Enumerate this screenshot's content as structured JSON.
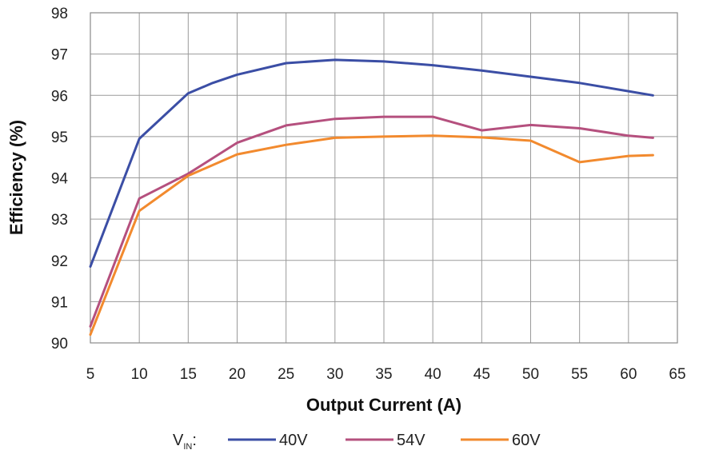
{
  "chart_data": {
    "type": "line",
    "xlabel": "Output Current (A)",
    "ylabel": "Efficiency (%)",
    "xlim": [
      5,
      65
    ],
    "ylim": [
      90,
      98
    ],
    "xticks": [
      5,
      10,
      15,
      20,
      25,
      30,
      35,
      40,
      45,
      50,
      55,
      60,
      65
    ],
    "yticks": [
      90,
      91,
      92,
      93,
      94,
      95,
      96,
      97,
      98
    ],
    "grid": true,
    "legend_position": "bottom",
    "legend_title": "V",
    "legend_title_sub": "IN",
    "legend_title_suffix": ":",
    "series": [
      {
        "name": "40V",
        "color": "#3b4ea5",
        "x": [
          5,
          10,
          15,
          17.5,
          20,
          25,
          30,
          35,
          40,
          45,
          50,
          55,
          60,
          62.5
        ],
        "y": [
          91.85,
          94.95,
          96.05,
          96.3,
          96.5,
          96.78,
          96.86,
          96.82,
          96.73,
          96.6,
          96.45,
          96.3,
          96.1,
          96.0
        ]
      },
      {
        "name": "54V",
        "color": "#b5507e",
        "x": [
          5,
          10,
          15,
          20,
          25,
          30,
          35,
          40,
          45,
          50,
          55,
          60,
          62.5
        ],
        "y": [
          90.4,
          93.5,
          94.1,
          94.85,
          95.27,
          95.43,
          95.48,
          95.48,
          95.15,
          95.28,
          95.2,
          95.02,
          94.97
        ]
      },
      {
        "name": "60V",
        "color": "#f28a2e",
        "x": [
          5,
          10,
          15,
          20,
          25,
          30,
          35,
          40,
          45,
          50,
          55,
          60,
          62.5
        ],
        "y": [
          90.2,
          93.2,
          94.05,
          94.57,
          94.8,
          94.97,
          95.0,
          95.02,
          94.98,
          94.9,
          94.38,
          94.53,
          94.55
        ]
      }
    ]
  }
}
